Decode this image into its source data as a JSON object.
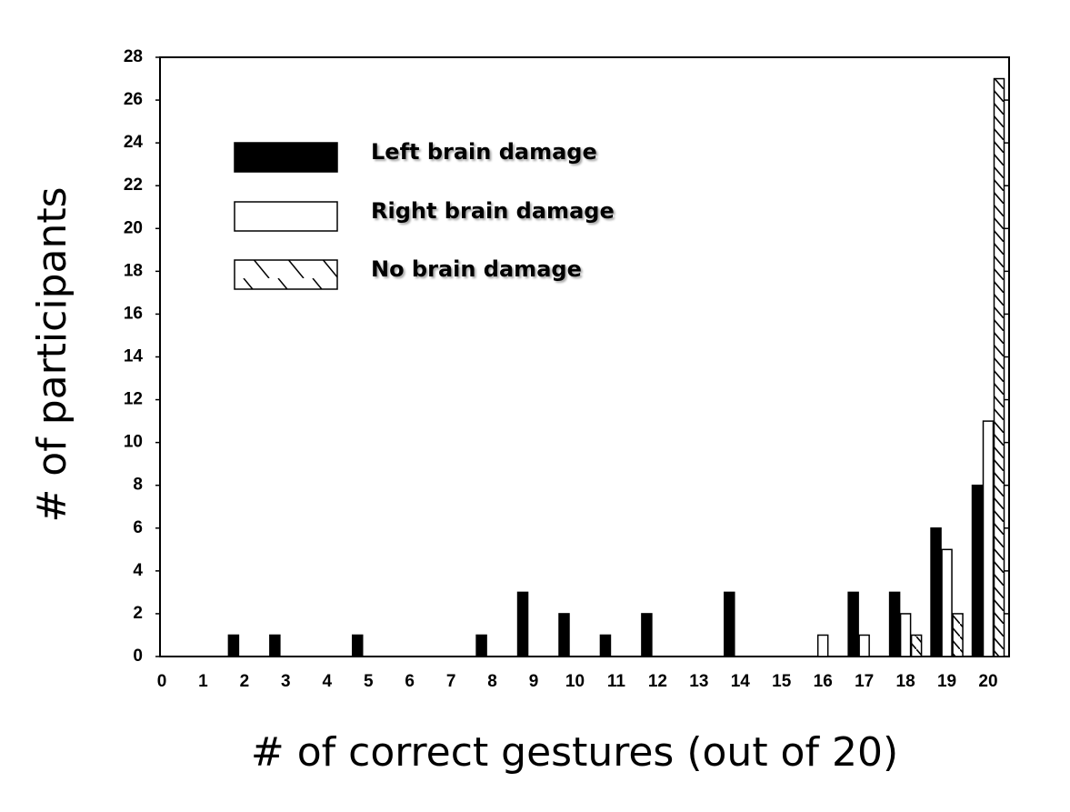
{
  "chart_data": {
    "type": "bar",
    "x_label": "# of correct gestures (out of 20)",
    "y_label": "# of participants",
    "categories": [
      "0",
      "1",
      "2",
      "3",
      "4",
      "5",
      "6",
      "7",
      "8",
      "9",
      "10",
      "11",
      "12",
      "13",
      "14",
      "15",
      "16",
      "17",
      "18",
      "19",
      "20"
    ],
    "series": [
      {
        "name": "Left brain damage",
        "color": "#000000",
        "values": [
          0,
          0,
          1,
          1,
          0,
          1,
          0,
          0,
          1,
          3,
          2,
          1,
          2,
          0,
          3,
          0,
          0,
          3,
          3,
          6,
          8
        ]
      },
      {
        "name": "Right brain damage",
        "color": "#ffffff",
        "values": [
          0,
          0,
          0,
          0,
          0,
          0,
          0,
          0,
          0,
          0,
          0,
          0,
          0,
          0,
          0,
          0,
          1,
          1,
          2,
          5,
          11
        ]
      },
      {
        "name": "No brain damage",
        "color": "#ffffff",
        "pattern": "hatch",
        "values": [
          0,
          0,
          0,
          0,
          0,
          0,
          0,
          0,
          0,
          0,
          0,
          0,
          0,
          0,
          0,
          0,
          0,
          0,
          1,
          2,
          27
        ]
      }
    ],
    "ylim": [
      0,
      28
    ],
    "yticks": [
      0,
      2,
      4,
      6,
      8,
      10,
      12,
      14,
      16,
      18,
      20,
      22,
      24,
      26,
      28
    ]
  }
}
